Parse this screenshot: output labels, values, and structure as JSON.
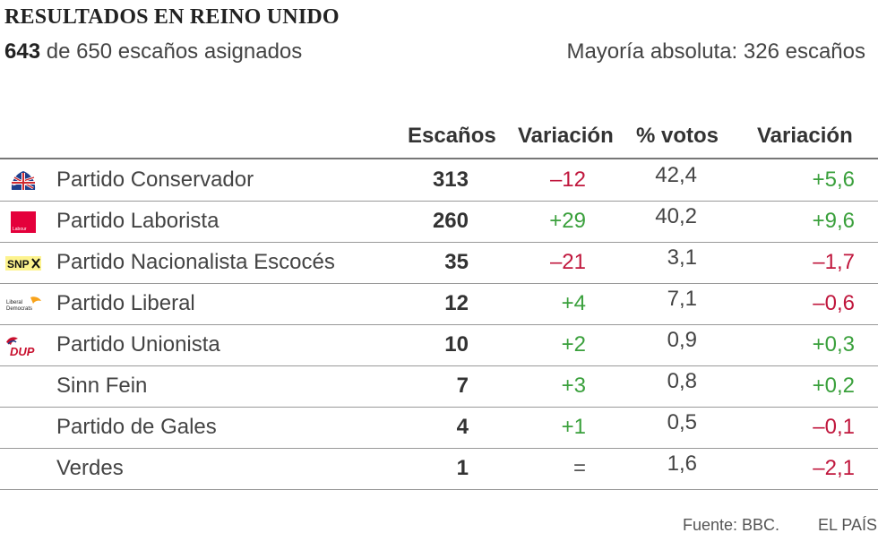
{
  "title": "RESULTADOS EN REINO UNIDO",
  "subtitle_seats_bold": "643",
  "subtitle_seats_rest": " de 650 escaños asignados",
  "majority": "Mayoría absoluta: 326 escaños",
  "headers": {
    "seats": "Escaños",
    "seat_change": "Variación",
    "votes": "% votos",
    "vote_change": "Variación"
  },
  "colors": {
    "positive": "#3aa03c",
    "negative": "#c0173d"
  },
  "chart_data": {
    "type": "table",
    "columns": [
      "",
      "Escaños",
      "Variación",
      "% votos",
      "Variación"
    ],
    "rows": [
      {
        "party": "Partido Conservador",
        "logo": "conservative-logo",
        "seats": "313",
        "seat_change": "–12",
        "seat_sign": "neg",
        "votes": "42,4",
        "vote_change": "+5,6",
        "vote_sign": "pos"
      },
      {
        "party": "Partido Laborista",
        "logo": "labour-logo",
        "logo_text": "Labour",
        "seats": "260",
        "seat_change": "+29",
        "seat_sign": "pos",
        "votes": "40,2",
        "vote_change": "+9,6",
        "vote_sign": "pos"
      },
      {
        "party": "Partido Nacionalista Escocés",
        "logo": "snp-logo",
        "logo_text": "SNP",
        "seats": "35",
        "seat_change": "–21",
        "seat_sign": "neg",
        "votes": "3,1",
        "vote_change": "–1,7",
        "vote_sign": "neg"
      },
      {
        "party": "Partido Liberal",
        "logo": "libdem-logo",
        "logo_text": "Liberal Democrats",
        "seats": "12",
        "seat_change": "+4",
        "seat_sign": "pos",
        "votes": "7,1",
        "vote_change": "–0,6",
        "vote_sign": "neg"
      },
      {
        "party": "Partido Unionista",
        "logo": "dup-logo",
        "logo_text": "DUP",
        "seats": "10",
        "seat_change": "+2",
        "seat_sign": "pos",
        "votes": "0,9",
        "vote_change": "+0,3",
        "vote_sign": "pos"
      },
      {
        "party": "Sinn Fein",
        "logo": "",
        "seats": "7",
        "seat_change": "+3",
        "seat_sign": "pos",
        "votes": "0,8",
        "vote_change": "+0,2",
        "vote_sign": "pos"
      },
      {
        "party": "Partido de Gales",
        "logo": "",
        "seats": "4",
        "seat_change": "+1",
        "seat_sign": "pos",
        "votes": "0,5",
        "vote_change": "–0,1",
        "vote_sign": "neg"
      },
      {
        "party": "Verdes",
        "logo": "",
        "seats": "1",
        "seat_change": "=",
        "seat_sign": "neu",
        "votes": "1,6",
        "vote_change": "–2,1",
        "vote_sign": "neg"
      }
    ]
  },
  "footer": {
    "source": "Fuente: BBC.",
    "brand": "EL PAÍS"
  }
}
